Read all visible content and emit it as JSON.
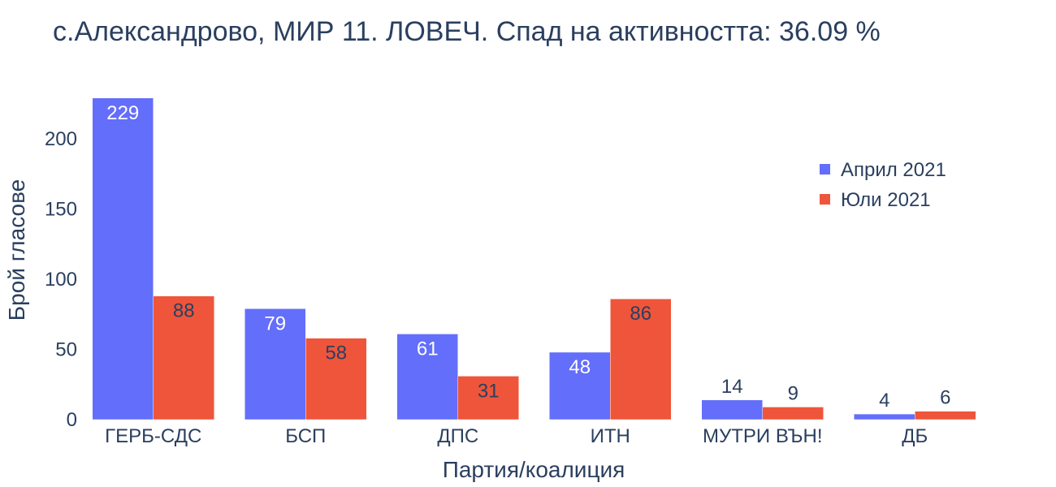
{
  "chart_data": {
    "type": "bar",
    "title": "с.Александрово, МИР 11. ЛОВЕЧ. Спад на активността: 36.09 %",
    "xlabel": "Партия/коалиция",
    "ylabel": "Брой гласове",
    "categories": [
      "ГЕРБ-СДС",
      "БСП",
      "ДПС",
      "ИТН",
      "МУТРИ ВЪН!",
      "ДБ"
    ],
    "series": [
      {
        "name": "Април 2021",
        "color": "#636efa",
        "values": [
          229,
          79,
          61,
          48,
          14,
          4
        ]
      },
      {
        "name": "Юли 2021",
        "color": "#ef553b",
        "values": [
          88,
          58,
          31,
          86,
          9,
          6
        ]
      }
    ],
    "y_ticks": [
      0,
      50,
      100,
      150,
      200
    ],
    "ylim": [
      0,
      241
    ],
    "grid": false,
    "legend_position": "top-right"
  }
}
